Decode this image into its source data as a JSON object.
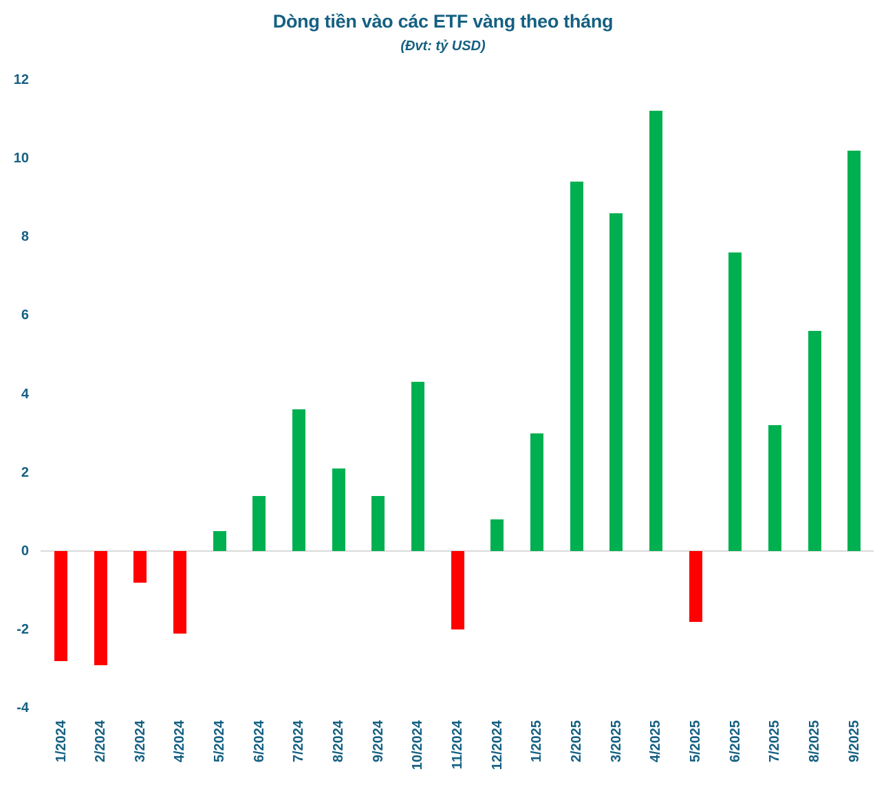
{
  "chart_data": {
    "type": "bar",
    "title": "Dòng tiền vào các ETF vàng theo tháng",
    "subtitle": "(Đvt: tỷ USD)",
    "categories": [
      "1/2024",
      "2/2024",
      "3/2024",
      "4/2024",
      "5/2024",
      "6/2024",
      "7/2024",
      "8/2024",
      "9/2024",
      "10/2024",
      "11/2024",
      "12/2024",
      "1/2025",
      "2/2025",
      "3/2025",
      "4/2025",
      "5/2025",
      "6/2025",
      "7/2025",
      "8/2025",
      "9/2025"
    ],
    "values": [
      -2.8,
      -2.9,
      -0.8,
      -2.1,
      0.5,
      1.4,
      3.6,
      2.1,
      1.4,
      4.3,
      -2.0,
      0.8,
      3.0,
      9.4,
      8.6,
      11.2,
      -1.8,
      7.6,
      3.2,
      5.6,
      10.2
    ],
    "yticks": [
      12,
      10,
      8,
      6,
      4,
      2,
      0,
      -2,
      -4
    ],
    "ylim": [
      -4,
      12
    ],
    "xlabel": "",
    "ylabel": "",
    "grid": "none",
    "legend_position": "none",
    "colors": {
      "positive_bar": "#00B050",
      "negative_bar": "#FF0000",
      "text": "#156082",
      "axis_line": "#D9D9D9"
    }
  }
}
